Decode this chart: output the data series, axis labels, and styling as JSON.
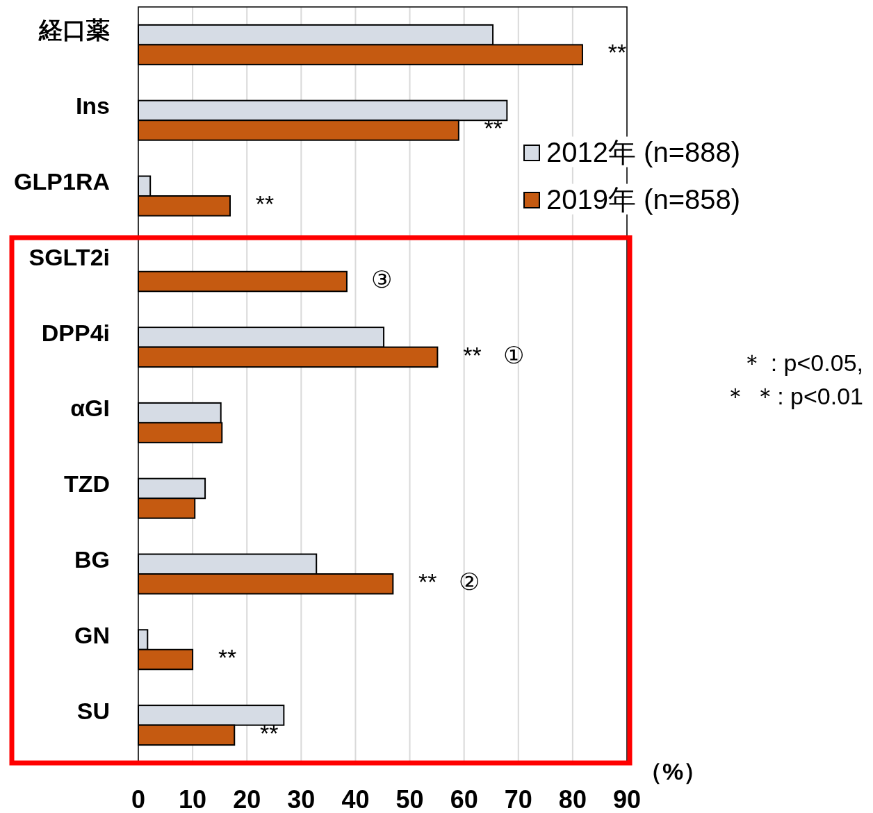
{
  "chart_data": {
    "type": "bar",
    "orientation": "horizontal",
    "xlabel": "（%）",
    "categories": [
      "経口薬",
      "Ins",
      "GLP1RA",
      "SGLT2i",
      "DPP4i",
      "αGI",
      "TZD",
      "BG",
      "GN",
      "SU"
    ],
    "series": [
      {
        "name": "2012年 (n=888)",
        "color": "#d6dce5",
        "values": [
          65.3,
          67.9,
          2.2,
          null,
          45.2,
          15.2,
          12.3,
          32.8,
          1.7,
          26.8
        ]
      },
      {
        "name": "2019年 (n=858)",
        "color": "#c55a11",
        "values": [
          81.8,
          59.0,
          16.9,
          38.4,
          55.1,
          15.4,
          10.4,
          46.9,
          10.0,
          17.7
        ]
      }
    ],
    "xlim": [
      0,
      90
    ],
    "xticks": [
      0,
      10,
      20,
      30,
      40,
      50,
      60,
      70,
      80,
      90
    ],
    "grid": "x",
    "legend": "top right",
    "annotations": [
      {
        "text": "**",
        "x": 81.8,
        "y": "経口薬"
      },
      {
        "text": "**",
        "x": 59.0,
        "y": "Ins"
      },
      {
        "text": "**",
        "x": 16.9,
        "y": "GLP1RA"
      },
      {
        "text": "③",
        "x": 38.4,
        "y": "SGLT2i"
      },
      {
        "text": "**",
        "x": 55.1,
        "y": "DPP4i"
      },
      {
        "text": "①",
        "x": 55.1,
        "y": "DPP4i"
      },
      {
        "text": "**",
        "x": 46.9,
        "y": "BG"
      },
      {
        "text": "②",
        "x": 46.9,
        "y": "BG"
      },
      {
        "text": "**",
        "x": 10.0,
        "y": "GN"
      },
      {
        "text": "**",
        "x": 17.7,
        "y": "SU"
      },
      "＊ : p<0.05,",
      "＊ ＊: p<0.01"
    ]
  }
}
